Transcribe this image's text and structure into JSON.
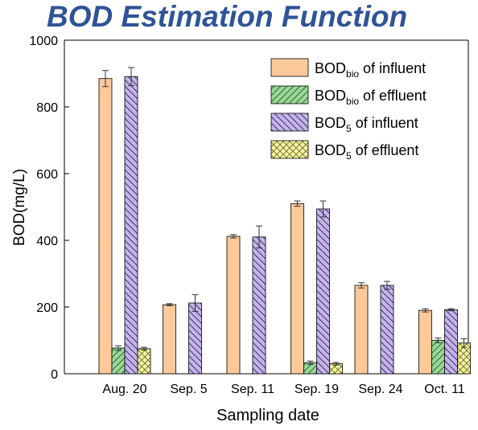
{
  "header": {
    "title": "BOD Estimation Function"
  },
  "chart_data": {
    "type": "bar",
    "title": "BOD Estimation Function",
    "xlabel": "Sampling date",
    "ylabel": "BOD(mg/L)",
    "ylim": [
      0,
      1000
    ],
    "yticks": [
      "0",
      "200",
      "400",
      "600",
      "800",
      "1000"
    ],
    "categories": [
      "Aug. 20",
      "Sep. 5",
      "Sep. 11",
      "Sep. 19",
      "Sep. 24",
      "Oct. 11"
    ],
    "legend_position": "top-right",
    "grid": false,
    "series": [
      {
        "name_main": "BOD",
        "name_sub": "bio",
        "name_rest": " of influent",
        "color": "#fcc99a",
        "pattern": "solid",
        "values": [
          885,
          207,
          412,
          510,
          265,
          190
        ],
        "errors": [
          24,
          3,
          5,
          8,
          8,
          5
        ]
      },
      {
        "name_main": "BOD",
        "name_sub": "bio",
        "name_rest": " of effluent",
        "color": "#9ad89a",
        "pattern": "diagonal-forward",
        "values": [
          77,
          null,
          null,
          33,
          null,
          100
        ],
        "errors": [
          7,
          null,
          null,
          5,
          null,
          7
        ]
      },
      {
        "name_main": "BOD",
        "name_sub": "5",
        "name_rest": " of influent",
        "color": "#c5b5e8",
        "pattern": "diagonal-back",
        "values": [
          891,
          212,
          410,
          494,
          265,
          192
        ],
        "errors": [
          27,
          25,
          33,
          24,
          12,
          3
        ]
      },
      {
        "name_main": "BOD",
        "name_sub": "5",
        "name_rest": " of effluent",
        "color": "#f7f5a0",
        "pattern": "crosshatch",
        "values": [
          75,
          null,
          null,
          30,
          null,
          92
        ],
        "errors": [
          4,
          null,
          null,
          4,
          null,
          13
        ]
      }
    ]
  }
}
